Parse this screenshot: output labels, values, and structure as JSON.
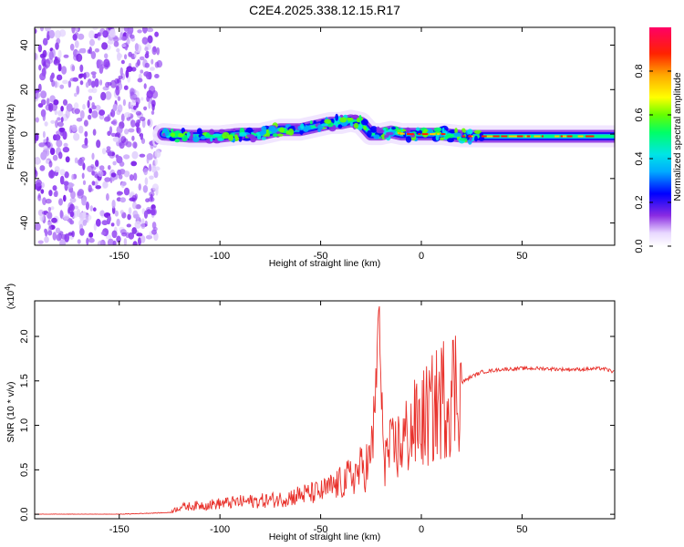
{
  "title": "C2E4.2025.338.12.15.R17",
  "chart_data": [
    {
      "type": "heatmap",
      "xlabel": "Height of straight line (km)",
      "ylabel": "Frequency (Hz)",
      "xlim": [
        -192,
        96
      ],
      "ylim": [
        -50,
        48
      ],
      "xticks": [
        -150,
        -100,
        -50,
        0,
        50
      ],
      "yticks": [
        -40,
        -20,
        0,
        20,
        40
      ],
      "colorbar": {
        "label": "Normalized spectral amplitude",
        "range": [
          0,
          1
        ],
        "ticks": [
          "0.0",
          "0.2",
          "0.4",
          "0.6",
          "0.8"
        ]
      },
      "ridge": {
        "x": [
          -128,
          -115,
          -100,
          -90,
          -80,
          -70,
          -60,
          -50,
          -45,
          -40,
          -35,
          -30,
          -25,
          -20,
          -15,
          -10,
          -5,
          0,
          5,
          10,
          20,
          30,
          40,
          50,
          60,
          70,
          80,
          90,
          96
        ],
        "y": [
          0,
          -1,
          -1,
          0,
          0,
          2,
          2,
          4,
          5,
          5,
          6,
          5,
          0,
          0,
          1,
          0,
          0,
          0,
          0,
          0,
          -1,
          -1,
          -1,
          -1,
          -1,
          -1,
          -1,
          -1,
          -1
        ]
      },
      "noise_region_x": [
        -192,
        -130
      ]
    },
    {
      "type": "line",
      "xlabel": "Height of straight line (km)",
      "ylabel": "SNR (10 * v/v)",
      "y_multiplier": "x10^4",
      "xlim": [
        -192,
        96
      ],
      "ylim": [
        -0.05,
        2.4
      ],
      "xticks": [
        -150,
        -100,
        -50,
        0,
        50
      ],
      "yticks": [
        "0.0",
        "0.5",
        "1.0",
        "1.5",
        "2.0"
      ],
      "ytick_values": [
        0,
        0.5,
        1.0,
        1.5,
        2.0
      ],
      "series": [
        {
          "color": "#e8302a",
          "x": [
            -192,
            -150,
            -125,
            -120,
            -100,
            -90,
            -80,
            -70,
            -60,
            -50,
            -45,
            -40,
            -35,
            -30,
            -25,
            -22,
            -21,
            -20,
            -18,
            -15,
            -10,
            -5,
            0,
            5,
            10,
            15,
            20,
            25,
            30,
            40,
            50,
            60,
            70,
            80,
            90,
            96
          ],
          "y": [
            0.0,
            0.0,
            0.02,
            0.08,
            0.12,
            0.14,
            0.15,
            0.17,
            0.22,
            0.25,
            0.3,
            0.35,
            0.42,
            0.5,
            0.6,
            1.5,
            2.3,
            1.2,
            0.65,
            0.7,
            0.8,
            0.95,
            1.05,
            1.15,
            1.3,
            1.4,
            1.48,
            1.55,
            1.6,
            1.63,
            1.64,
            1.64,
            1.63,
            1.63,
            1.64,
            1.6
          ]
        }
      ]
    }
  ]
}
